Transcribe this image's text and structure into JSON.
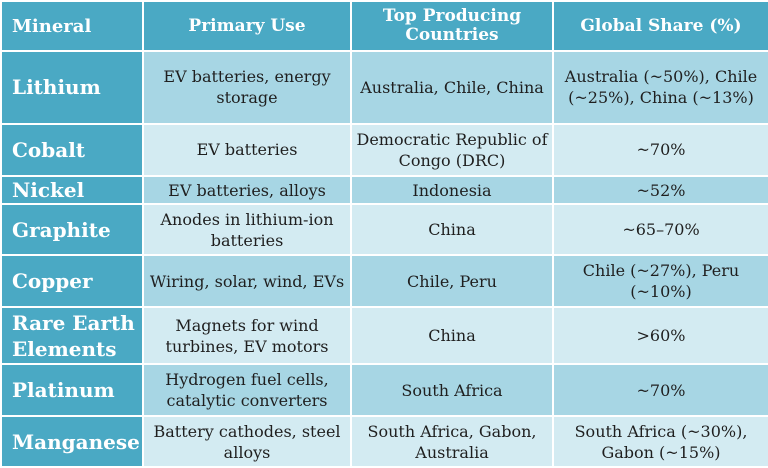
{
  "headers": [
    "Mineral",
    "Primary Use",
    "Top Producing Countries",
    "Global Share (%)"
  ],
  "rows": [
    {
      "mineral": "Lithium",
      "use": "EV batteries, energy storage",
      "countries": "Australia, Chile, China",
      "share": "Australia (~50%), Chile (~25%), China (~13%)"
    },
    {
      "mineral": "Cobalt",
      "use": "EV batteries",
      "countries": "Democratic Republic of Congo (DRC)",
      "share": "~70%"
    },
    {
      "mineral": "Nickel",
      "use": "EV batteries, alloys",
      "countries": "Indonesia",
      "share": "~52%"
    },
    {
      "mineral": "Graphite",
      "use": "Anodes in lithium-ion batteries",
      "countries": "China",
      "share": "~65–70%"
    },
    {
      "mineral": "Copper",
      "use": "Wiring, solar, wind, EVs",
      "countries": "Chile, Peru",
      "share": "Chile (~27%), Peru (~10%)"
    },
    {
      "mineral": "Rare Earth Elements",
      "use": "Magnets for wind turbines, EV motors",
      "countries": "China",
      "share": ">60%"
    },
    {
      "mineral": "Platinum",
      "use": "Hydrogen fuel cells, catalytic converters",
      "countries": "South Africa",
      "share": "~70%"
    },
    {
      "mineral": "Manganese",
      "use": "Battery cathodes, steel alloys",
      "countries": "South Africa, Gabon, Australia",
      "share": "South Africa (~30%), Gabon (~15%)"
    }
  ],
  "colors": {
    "header": "#4aa9c4",
    "row_dark": "#a7d6e4",
    "row_light": "#d3ebf2"
  }
}
